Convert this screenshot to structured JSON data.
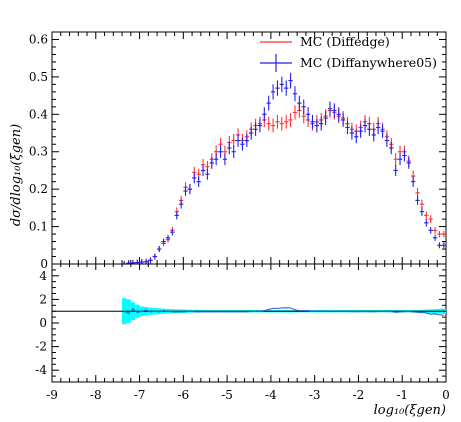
{
  "chart_data": [
    {
      "type": "scatter",
      "panel": "main",
      "ylabel": "dσ/dlog₁₀(ξgen)",
      "xlim": [
        -9,
        0
      ],
      "ylim": [
        0,
        0.62
      ],
      "y_ticks": [
        "0",
        "0.1",
        "0.2",
        "0.3",
        "0.4",
        "0.5",
        "0.6"
      ],
      "grid": false,
      "legend_placement": "top-right",
      "series": [
        {
          "name": "MC (Diffedge)",
          "color": "#ff3333",
          "x": [
            -7.35,
            -7.25,
            -7.15,
            -7.05,
            -6.95,
            -6.85,
            -6.75,
            -6.65,
            -6.55,
            -6.45,
            -6.35,
            -6.25,
            -6.15,
            -6.05,
            -5.95,
            -5.85,
            -5.75,
            -5.65,
            -5.55,
            -5.45,
            -5.35,
            -5.25,
            -5.15,
            -5.05,
            -4.95,
            -4.85,
            -4.75,
            -4.65,
            -4.55,
            -4.45,
            -4.35,
            -4.25,
            -4.15,
            -4.05,
            -3.95,
            -3.85,
            -3.75,
            -3.65,
            -3.55,
            -3.45,
            -3.35,
            -3.25,
            -3.15,
            -3.05,
            -2.95,
            -2.85,
            -2.75,
            -2.65,
            -2.55,
            -2.45,
            -2.35,
            -2.25,
            -2.15,
            -2.05,
            -1.95,
            -1.85,
            -1.75,
            -1.65,
            -1.55,
            -1.45,
            -1.35,
            -1.25,
            -1.15,
            -1.05,
            -0.95,
            -0.85,
            -0.75,
            -0.65,
            -0.55,
            -0.45,
            -0.35,
            -0.25,
            -0.15,
            -0.05
          ],
          "y": [
            0.0,
            0.002,
            0.003,
            0.004,
            0.005,
            0.006,
            0.01,
            0.02,
            0.04,
            0.055,
            0.065,
            0.09,
            0.14,
            0.17,
            0.205,
            0.2,
            0.245,
            0.24,
            0.265,
            0.26,
            0.28,
            0.3,
            0.32,
            0.3,
            0.325,
            0.33,
            0.345,
            0.33,
            0.34,
            0.36,
            0.37,
            0.375,
            0.385,
            0.375,
            0.37,
            0.38,
            0.375,
            0.38,
            0.385,
            0.405,
            0.41,
            0.395,
            0.385,
            0.375,
            0.38,
            0.385,
            0.395,
            0.41,
            0.405,
            0.395,
            0.39,
            0.375,
            0.36,
            0.355,
            0.365,
            0.38,
            0.375,
            0.36,
            0.375,
            0.36,
            0.34,
            0.32,
            0.28,
            0.3,
            0.3,
            0.275,
            0.235,
            0.19,
            0.16,
            0.13,
            0.12,
            0.09,
            0.08,
            0.08
          ]
        },
        {
          "name": "MC (Diffanywhere05)",
          "color": "#2222ee",
          "x": [
            -7.35,
            -7.25,
            -7.15,
            -7.05,
            -6.95,
            -6.85,
            -6.75,
            -6.65,
            -6.55,
            -6.45,
            -6.35,
            -6.25,
            -6.15,
            -6.05,
            -5.95,
            -5.85,
            -5.75,
            -5.65,
            -5.55,
            -5.45,
            -5.35,
            -5.25,
            -5.15,
            -5.05,
            -4.95,
            -4.85,
            -4.75,
            -4.65,
            -4.55,
            -4.45,
            -4.35,
            -4.25,
            -4.15,
            -4.05,
            -3.95,
            -3.85,
            -3.75,
            -3.65,
            -3.55,
            -3.45,
            -3.35,
            -3.25,
            -3.15,
            -3.05,
            -2.95,
            -2.85,
            -2.75,
            -2.65,
            -2.55,
            -2.45,
            -2.35,
            -2.25,
            -2.15,
            -2.05,
            -1.95,
            -1.85,
            -1.75,
            -1.65,
            -1.55,
            -1.45,
            -1.35,
            -1.25,
            -1.15,
            -1.05,
            -0.95,
            -0.85,
            -0.75,
            -0.65,
            -0.55,
            -0.45,
            -0.35,
            -0.25,
            -0.15,
            -0.05
          ],
          "y": [
            0.0,
            0.002,
            0.003,
            0.004,
            0.005,
            0.006,
            0.01,
            0.02,
            0.04,
            0.06,
            0.07,
            0.085,
            0.13,
            0.16,
            0.195,
            0.2,
            0.23,
            0.22,
            0.25,
            0.24,
            0.27,
            0.28,
            0.3,
            0.28,
            0.31,
            0.3,
            0.33,
            0.32,
            0.33,
            0.35,
            0.36,
            0.37,
            0.4,
            0.43,
            0.46,
            0.47,
            0.48,
            0.47,
            0.49,
            0.455,
            0.43,
            0.42,
            0.4,
            0.38,
            0.37,
            0.375,
            0.39,
            0.415,
            0.41,
            0.4,
            0.385,
            0.365,
            0.35,
            0.34,
            0.355,
            0.37,
            0.36,
            0.345,
            0.365,
            0.355,
            0.33,
            0.31,
            0.25,
            0.28,
            0.29,
            0.27,
            0.22,
            0.17,
            0.14,
            0.11,
            0.09,
            0.07,
            0.05,
            0.05
          ]
        }
      ]
    },
    {
      "type": "line",
      "panel": "ratio",
      "xlabel": "log₁₀(ξgen)",
      "xlim": [
        -9,
        0
      ],
      "ylim": [
        -5,
        5
      ],
      "x_ticks": [
        "-9",
        "-8",
        "-7",
        "-6",
        "-5",
        "-4",
        "-3",
        "-2",
        "-1",
        "0"
      ],
      "y_ticks": [
        "4",
        "2",
        "0",
        "-2",
        "-4"
      ],
      "reference_line": 1,
      "band_color": "#00ffff",
      "ratio_line_color": "#3a5fd0",
      "band": {
        "x": [
          -7.35,
          -7.25,
          -7.15,
          -7.05,
          -6.95,
          -6.85,
          -6.75,
          -6.65,
          -6.55,
          -6.45,
          -6.35,
          -6.25,
          -6.15,
          -6.05,
          -5.95,
          -5.85,
          -5.75,
          -5.65,
          -5.55,
          -5.45,
          -5.35,
          -5.25,
          -5.15,
          -5.05,
          -4.95,
          -4.85,
          -4.75,
          -4.65,
          -4.55,
          -4.45,
          -4.35,
          -4.25,
          -4.15,
          -4.05,
          -3.95,
          -3.85,
          -3.75,
          -3.65,
          -3.55,
          -3.45,
          -3.35,
          -3.25,
          -3.15,
          -3.05,
          -2.95,
          -2.85,
          -2.75,
          -2.65,
          -2.55,
          -2.45,
          -2.35,
          -2.25,
          -2.15,
          -2.05,
          -1.95,
          -1.85,
          -1.75,
          -1.65,
          -1.55,
          -1.45,
          -1.35,
          -1.25,
          -1.15,
          -1.05,
          -0.95,
          -0.85,
          -0.75,
          -0.65,
          -0.55,
          -0.45,
          -0.35,
          -0.25,
          -0.15,
          -0.05
        ],
        "half_width": [
          1.1,
          1.0,
          0.75,
          0.55,
          0.4,
          0.35,
          0.3,
          0.28,
          0.25,
          0.22,
          0.2,
          0.18,
          0.16,
          0.15,
          0.14,
          0.13,
          0.12,
          0.12,
          0.11,
          0.11,
          0.1,
          0.1,
          0.1,
          0.1,
          0.1,
          0.1,
          0.1,
          0.1,
          0.1,
          0.1,
          0.1,
          0.1,
          0.1,
          0.1,
          0.1,
          0.1,
          0.1,
          0.1,
          0.1,
          0.1,
          0.1,
          0.1,
          0.1,
          0.1,
          0.1,
          0.1,
          0.1,
          0.1,
          0.1,
          0.1,
          0.1,
          0.1,
          0.1,
          0.1,
          0.1,
          0.1,
          0.1,
          0.1,
          0.1,
          0.1,
          0.1,
          0.1,
          0.1,
          0.1,
          0.1,
          0.1,
          0.1,
          0.1,
          0.12,
          0.14,
          0.16,
          0.18,
          0.2,
          0.22
        ]
      },
      "ratio": {
        "x": [
          -7.35,
          -7.25,
          -7.15,
          -7.05,
          -6.95,
          -6.85,
          -6.75,
          -6.65,
          -6.55,
          -6.45,
          -6.35,
          -6.25,
          -6.15,
          -6.05,
          -5.95,
          -5.85,
          -5.75,
          -5.65,
          -5.55,
          -5.45,
          -5.35,
          -5.25,
          -5.15,
          -5.05,
          -4.95,
          -4.85,
          -4.75,
          -4.65,
          -4.55,
          -4.45,
          -4.35,
          -4.25,
          -4.15,
          -4.05,
          -3.95,
          -3.85,
          -3.75,
          -3.65,
          -3.55,
          -3.45,
          -3.35,
          -3.25,
          -3.15,
          -3.05,
          -2.95,
          -2.85,
          -2.75,
          -2.65,
          -2.55,
          -2.45,
          -2.35,
          -2.25,
          -2.15,
          -2.05,
          -1.95,
          -1.85,
          -1.75,
          -1.65,
          -1.55,
          -1.45,
          -1.35,
          -1.25,
          -1.15,
          -1.05,
          -0.95,
          -0.85,
          -0.75,
          -0.65,
          -0.55,
          -0.45,
          -0.35,
          -0.25,
          -0.15,
          -0.05
        ],
        "y": [
          1.0,
          0.8,
          1.2,
          0.9,
          1.0,
          1.1,
          0.95,
          1.0,
          0.95,
          1.05,
          1.0,
          0.95,
          0.95,
          0.95,
          0.95,
          1.0,
          0.95,
          0.95,
          0.95,
          0.95,
          0.95,
          0.95,
          0.95,
          0.95,
          0.95,
          0.95,
          0.95,
          0.95,
          0.95,
          0.97,
          0.98,
          1.0,
          1.05,
          1.15,
          1.24,
          1.24,
          1.28,
          1.3,
          1.27,
          1.12,
          1.05,
          1.06,
          1.04,
          1.01,
          0.98,
          0.98,
          0.99,
          1.01,
          1.01,
          1.01,
          0.99,
          0.97,
          0.97,
          0.96,
          0.97,
          0.97,
          0.96,
          0.96,
          0.97,
          0.99,
          0.97,
          0.97,
          0.9,
          0.94,
          0.96,
          0.98,
          0.94,
          0.9,
          0.88,
          0.85,
          0.75,
          0.78,
          0.7,
          0.65
        ]
      }
    }
  ]
}
